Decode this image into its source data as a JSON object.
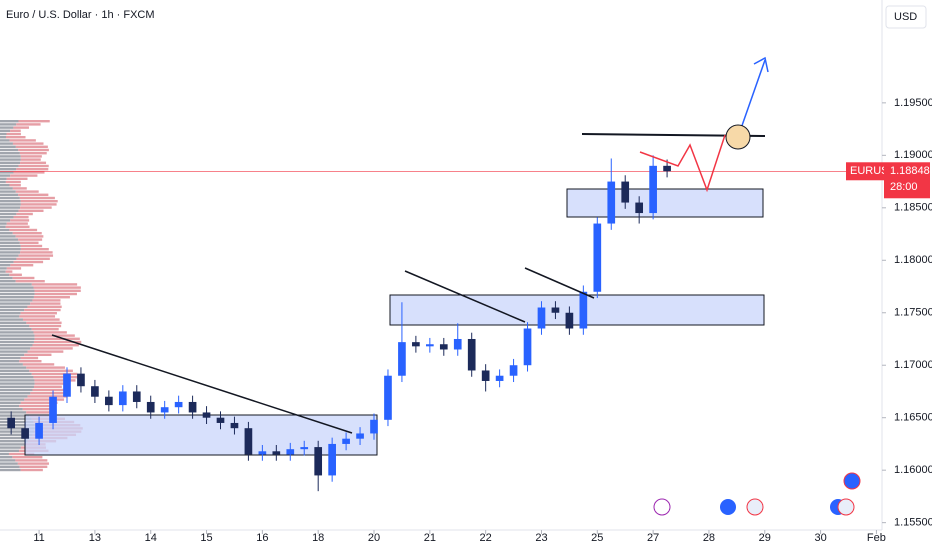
{
  "chart_data": {
    "type": "candlestick",
    "title": "Euro / U.S. Dollar · 1h · FXCM",
    "currency": "USD",
    "symbol": "EURUSD",
    "last_price": 1.18848,
    "countdown": "28:00",
    "up_color": "#2962ff",
    "down_color": "#1c2a5a",
    "price_line_color": "#f23645",
    "x": [
      -0.5,
      -0.25,
      0,
      0.25,
      0.5,
      0.75,
      1,
      1.25,
      1.5,
      1.75,
      2,
      2.25,
      2.5,
      2.75,
      3,
      3.25,
      3.5,
      3.75,
      4,
      4.25,
      4.5,
      4.75,
      5,
      5.25,
      5.5,
      5.75,
      6,
      6.25,
      6.5,
      6.75,
      7,
      7.25,
      7.5,
      7.75,
      8,
      8.25,
      8.5,
      8.75,
      9,
      9.25,
      9.5,
      9.75,
      10,
      10.25,
      10.5,
      10.75,
      11,
      11.25
    ],
    "open": [
      1.165,
      1.164,
      1.163,
      1.1645,
      1.167,
      1.1692,
      1.168,
      1.167,
      1.1662,
      1.1675,
      1.1665,
      1.1655,
      1.166,
      1.1665,
      1.1655,
      1.165,
      1.1645,
      1.164,
      1.1615,
      1.1618,
      1.1615,
      1.162,
      1.1622,
      1.1595,
      1.1625,
      1.163,
      1.1635,
      1.1648,
      1.169,
      1.1722,
      1.1718,
      1.172,
      1.1715,
      1.1725,
      1.1695,
      1.1685,
      1.169,
      1.17,
      1.1735,
      1.1755,
      1.175,
      1.1735,
      1.177,
      1.1835,
      1.1875,
      1.1855,
      1.1845,
      1.189
    ],
    "high": [
      1.1656,
      1.1646,
      1.1651,
      1.1676,
      1.1698,
      1.1698,
      1.1686,
      1.1676,
      1.1681,
      1.1681,
      1.1671,
      1.1666,
      1.1671,
      1.1671,
      1.1661,
      1.1656,
      1.1651,
      1.1646,
      1.1624,
      1.1624,
      1.1626,
      1.1628,
      1.1628,
      1.1631,
      1.1636,
      1.1641,
      1.1654,
      1.1696,
      1.176,
      1.1728,
      1.1726,
      1.1726,
      1.174,
      1.1731,
      1.1701,
      1.1696,
      1.1706,
      1.1741,
      1.1761,
      1.1761,
      1.1756,
      1.1776,
      1.1841,
      1.1897,
      1.1881,
      1.1861,
      1.19,
      1.1896
    ],
    "low": [
      1.1634,
      1.1624,
      1.1624,
      1.1639,
      1.1664,
      1.1674,
      1.1664,
      1.1656,
      1.1656,
      1.1659,
      1.1649,
      1.1649,
      1.1654,
      1.1649,
      1.1644,
      1.1639,
      1.1634,
      1.1609,
      1.1609,
      1.1609,
      1.1609,
      1.1614,
      1.158,
      1.1589,
      1.1619,
      1.1624,
      1.1629,
      1.1642,
      1.1684,
      1.1712,
      1.1712,
      1.1709,
      1.1709,
      1.1689,
      1.1675,
      1.1679,
      1.1684,
      1.1694,
      1.1729,
      1.1744,
      1.1729,
      1.1729,
      1.1764,
      1.1829,
      1.1849,
      1.1835,
      1.1839,
      1.1879
    ],
    "close": [
      1.164,
      1.163,
      1.1645,
      1.167,
      1.1692,
      1.168,
      1.167,
      1.1662,
      1.1675,
      1.1665,
      1.1655,
      1.166,
      1.1665,
      1.1655,
      1.165,
      1.1645,
      1.164,
      1.1615,
      1.1618,
      1.1615,
      1.162,
      1.1622,
      1.1595,
      1.1625,
      1.163,
      1.1635,
      1.1648,
      1.169,
      1.1722,
      1.1718,
      1.172,
      1.1715,
      1.1725,
      1.1695,
      1.1685,
      1.169,
      1.17,
      1.1735,
      1.1755,
      1.175,
      1.1735,
      1.177,
      1.1835,
      1.1875,
      1.1855,
      1.1845,
      1.189,
      1.18848
    ],
    "xlim": [
      -0.7,
      15.1
    ],
    "xticks": [
      {
        "value": 0,
        "label": "11"
      },
      {
        "value": 1,
        "label": "13"
      },
      {
        "value": 2,
        "label": "14"
      },
      {
        "value": 3,
        "label": "15"
      },
      {
        "value": 4,
        "label": "16"
      },
      {
        "value": 5,
        "label": "18"
      },
      {
        "value": 6,
        "label": "20"
      },
      {
        "value": 7,
        "label": "21"
      },
      {
        "value": 8,
        "label": "22"
      },
      {
        "value": 9,
        "label": "23"
      },
      {
        "value": 10,
        "label": "25"
      },
      {
        "value": 11,
        "label": "27"
      },
      {
        "value": 12,
        "label": "28"
      },
      {
        "value": 13,
        "label": "29"
      },
      {
        "value": 14,
        "label": "30"
      },
      {
        "value": 15,
        "label": "Feb"
      }
    ],
    "ylim": [
      1.1543,
      1.2048
    ],
    "yticks": [
      {
        "value": 1.155,
        "label": "1.15500"
      },
      {
        "value": 1.16,
        "label": "1.16000"
      },
      {
        "value": 1.165,
        "label": "1.16500"
      },
      {
        "value": 1.17,
        "label": "1.17000"
      },
      {
        "value": 1.175,
        "label": "1.17500"
      },
      {
        "value": 1.18,
        "label": "1.18000"
      },
      {
        "value": 1.185,
        "label": "1.18500"
      },
      {
        "value": 1.19,
        "label": "1.19000"
      },
      {
        "value": 1.195,
        "label": "1.19500"
      }
    ]
  }
}
